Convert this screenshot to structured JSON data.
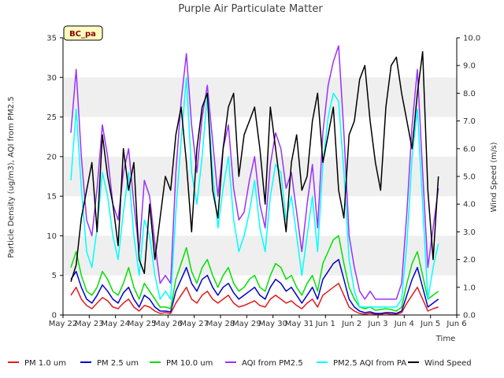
{
  "chart_data": {
    "type": "line",
    "title": "Purple Air Particulate Matter",
    "site_badge": "BC_pa",
    "xlabel": "Time",
    "ylabel_left": "Particle Density (ug/m3), AQI from PM2.5",
    "ylabel_right": "Wind Speed (m/s)",
    "ylim_left": [
      0,
      35
    ],
    "ylim_right": [
      0,
      10
    ],
    "xlim": [
      0,
      15
    ],
    "x_tick_labels": [
      "May 22",
      "May 23",
      "May 24",
      "May 25",
      "May 26",
      "May 27",
      "May 28",
      "May 29",
      "May 30",
      "May 31",
      "Jun 1",
      "Jun 2",
      "Jun 3",
      "Jun 4",
      "Jun 5",
      "Jun 6"
    ],
    "y_ticks_left": [
      "0",
      "5",
      "10",
      "15",
      "20",
      "25",
      "30",
      "35"
    ],
    "y_ticks_right": [
      "0.0",
      "1.0",
      "2.0",
      "3.0",
      "4.0",
      "5.0",
      "6.0",
      "7.0",
      "8.0",
      "9.0",
      "10.0"
    ],
    "grid": "alternating horizontal bands",
    "legend_position": "bottom",
    "x_days": [
      0.3,
      0.5,
      0.7,
      0.9,
      1.1,
      1.3,
      1.5,
      1.7,
      1.9,
      2.1,
      2.3,
      2.5,
      2.7,
      2.9,
      3.1,
      3.3,
      3.5,
      3.7,
      3.9,
      4.1,
      4.3,
      4.5,
      4.7,
      4.9,
      5.1,
      5.3,
      5.5,
      5.7,
      5.9,
      6.1,
      6.3,
      6.5,
      6.7,
      6.9,
      7.1,
      7.3,
      7.5,
      7.7,
      7.9,
      8.1,
      8.3,
      8.5,
      8.7,
      8.9,
      9.1,
      9.3,
      9.5,
      9.7,
      9.9,
      10.1,
      10.3,
      10.5,
      10.7,
      10.9,
      11.1,
      11.3,
      11.5,
      11.7,
      11.9,
      12.1,
      12.3,
      12.5,
      12.7,
      12.9,
      13.1,
      13.3,
      13.5,
      13.7,
      13.9,
      14.1,
      14.3
    ],
    "series": [
      {
        "name": "PM 1.0 um",
        "color": "#e31a1c",
        "axis": "left",
        "values": [
          2.5,
          3.5,
          2.0,
          1.2,
          0.8,
          1.5,
          2.2,
          1.8,
          1.0,
          0.8,
          1.5,
          2.0,
          1.0,
          0.5,
          1.2,
          1.0,
          0.5,
          0.2,
          0.3,
          0.2,
          1.5,
          2.5,
          3.5,
          2.0,
          1.5,
          2.5,
          3.0,
          2.0,
          1.5,
          2.0,
          2.5,
          1.5,
          1.0,
          1.2,
          1.5,
          1.8,
          1.2,
          1.0,
          2.0,
          2.5,
          2.0,
          1.5,
          1.8,
          1.2,
          0.8,
          1.5,
          2.0,
          1.0,
          2.5,
          3.0,
          3.5,
          4.0,
          2.5,
          1.0,
          0.5,
          0.2,
          0.1,
          0.2,
          0.1,
          0.1,
          0.2,
          0.1,
          0.1,
          0.3,
          1.5,
          2.5,
          3.5,
          2.0,
          0.5,
          0.8,
          1.0
        ]
      },
      {
        "name": "PM 2.5 um",
        "color": "#0000cc",
        "axis": "left",
        "values": [
          4.5,
          5.5,
          3.5,
          2.0,
          1.5,
          2.5,
          3.8,
          3.0,
          2.0,
          1.5,
          2.8,
          3.5,
          2.0,
          1.0,
          2.5,
          2.0,
          1.0,
          0.5,
          0.5,
          0.4,
          3.0,
          4.5,
          6.0,
          4.0,
          3.0,
          4.5,
          5.0,
          3.5,
          2.5,
          3.5,
          4.0,
          2.8,
          2.0,
          2.5,
          3.0,
          3.5,
          2.5,
          2.0,
          3.5,
          4.5,
          4.0,
          3.0,
          3.5,
          2.5,
          1.5,
          2.5,
          3.5,
          2.0,
          4.5,
          5.5,
          6.5,
          7.0,
          4.5,
          2.0,
          1.0,
          0.5,
          0.3,
          0.4,
          0.2,
          0.2,
          0.3,
          0.3,
          0.2,
          0.5,
          2.5,
          4.5,
          6.0,
          3.5,
          1.0,
          1.5,
          2.0
        ]
      },
      {
        "name": "PM 10.0 um",
        "color": "#00e000",
        "axis": "left",
        "values": [
          6.0,
          8.0,
          5.0,
          3.0,
          2.5,
          3.5,
          5.5,
          4.5,
          3.0,
          2.5,
          4.0,
          6.0,
          3.5,
          2.0,
          4.0,
          3.0,
          2.0,
          1.0,
          1.0,
          0.8,
          4.5,
          6.5,
          8.5,
          5.5,
          4.0,
          6.0,
          7.0,
          5.0,
          3.5,
          5.0,
          6.0,
          4.0,
          3.0,
          3.5,
          4.5,
          5.0,
          3.5,
          3.0,
          5.0,
          6.5,
          6.0,
          4.5,
          5.0,
          3.5,
          2.5,
          4.0,
          5.0,
          3.0,
          6.5,
          8.0,
          9.5,
          10.0,
          6.5,
          3.5,
          2.0,
          1.0,
          0.8,
          1.0,
          0.6,
          0.7,
          0.8,
          0.7,
          0.5,
          1.0,
          4.0,
          6.5,
          8.0,
          5.0,
          2.0,
          2.5,
          3.0
        ]
      },
      {
        "name": "AQI from PM2.5",
        "color": "#9b30ff",
        "axis": "left",
        "values": [
          23,
          31,
          20,
          12,
          10,
          16,
          24,
          20,
          14,
          12,
          18,
          21,
          14,
          8,
          17,
          15,
          9,
          4,
          5,
          4,
          18,
          27,
          33,
          24,
          18,
          25,
          29,
          22,
          15,
          21,
          24,
          16,
          12,
          13,
          17,
          20,
          14,
          11,
          19,
          23,
          21,
          16,
          18,
          13,
          8,
          14,
          19,
          11,
          23,
          29,
          32,
          34,
          23,
          10,
          6,
          3,
          2,
          3,
          2,
          2,
          2,
          2,
          2,
          4,
          13,
          24,
          31,
          18,
          6,
          11,
          16
        ]
      },
      {
        "name": "PM2.5 AQI from PA",
        "color": "#00ffff",
        "axis": "left",
        "values": [
          17,
          26,
          16,
          8,
          6,
          11,
          18,
          15,
          10,
          7,
          13,
          18,
          10,
          5,
          12,
          10,
          5,
          2,
          3,
          2,
          13,
          22,
          30,
          18,
          14,
          20,
          28,
          18,
          11,
          16,
          20,
          12,
          8,
          10,
          13,
          17,
          11,
          8,
          15,
          19,
          18,
          12,
          15,
          10,
          5,
          10,
          15,
          8,
          19,
          25,
          28,
          27,
          18,
          7,
          3,
          1,
          1,
          1,
          1,
          1,
          1,
          1,
          1,
          2,
          9,
          20,
          26,
          14,
          2,
          6,
          9
        ]
      },
      {
        "name": "Wind Speed",
        "color": "#000000",
        "axis": "right",
        "values": [
          1.2,
          1.8,
          3.5,
          4.5,
          5.5,
          3.0,
          6.5,
          5.0,
          4.0,
          2.5,
          6.0,
          4.5,
          5.5,
          2.0,
          1.5,
          4.0,
          2.0,
          3.5,
          5.0,
          4.5,
          6.5,
          7.5,
          5.5,
          3.0,
          6.0,
          7.5,
          8.0,
          4.5,
          3.5,
          6.0,
          7.5,
          8.0,
          5.0,
          6.5,
          7.0,
          7.5,
          6.0,
          4.0,
          7.5,
          6.0,
          4.5,
          3.0,
          5.5,
          6.5,
          4.5,
          5.0,
          7.0,
          8.0,
          5.5,
          6.5,
          7.5,
          4.5,
          3.5,
          6.5,
          7.0,
          8.5,
          9.0,
          7.0,
          5.5,
          4.5,
          7.5,
          9.0,
          9.3,
          8.0,
          7.0,
          6.0,
          8.0,
          9.5,
          4.5,
          2.0,
          5.0
        ]
      }
    ]
  }
}
